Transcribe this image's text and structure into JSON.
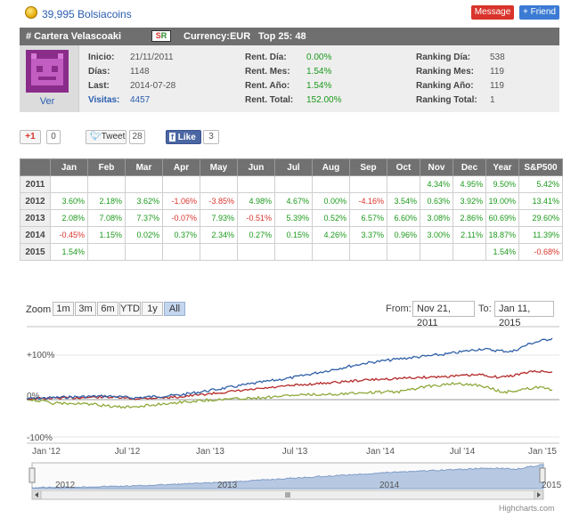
{
  "topbar": {
    "coins_text": "39,995 Bolsiacoins",
    "message_button": "Message",
    "friend_button": "+ Friend"
  },
  "header": {
    "title": "# Cartera Velascoaki",
    "badge_s": "S",
    "badge_r": "R",
    "currency": "Currency:EUR",
    "top": "Top 25: 48"
  },
  "profile": {
    "ver_label": "Ver",
    "col1": [
      {
        "label": "Inicio:",
        "value": "21/11/2011"
      },
      {
        "label": "Días:",
        "value": "1148"
      },
      {
        "label": "Last:",
        "value": "2014-07-28"
      },
      {
        "label": "Visitas:",
        "value": "4457"
      }
    ],
    "col2": [
      {
        "label": "Rent. Día:",
        "value": "0.00%"
      },
      {
        "label": "Rent. Mes:",
        "value": "1.54%"
      },
      {
        "label": "Rent. Año:",
        "value": "1.54%"
      },
      {
        "label": "Rent. Total:",
        "value": "152.00%"
      }
    ],
    "col3": [
      {
        "label": "Ranking Día:",
        "value": "538"
      },
      {
        "label": "Ranking Mes:",
        "value": "119"
      },
      {
        "label": "Ranking Año:",
        "value": "119"
      },
      {
        "label": "Ranking Total:",
        "value": "1"
      }
    ]
  },
  "social": {
    "gplus_label": "+1",
    "gplus_count": "0",
    "tweet_label": "Tweet",
    "tweet_count": "28",
    "like_label": "Like",
    "like_count": "3"
  },
  "table": {
    "headers": [
      "",
      "Jan",
      "Feb",
      "Mar",
      "Apr",
      "May",
      "Jun",
      "Jul",
      "Aug",
      "Sep",
      "Oct",
      "Nov",
      "Dec",
      "Year",
      "S&P500"
    ],
    "rows": [
      {
        "year": "2011",
        "cells": [
          "",
          "",
          "",
          "",
          "",
          "",
          "",
          "",
          "",
          "",
          "4.34%",
          "4.95%",
          "9.50%",
          "5.42%"
        ]
      },
      {
        "year": "2012",
        "cells": [
          "3.60%",
          "2.18%",
          "3.62%",
          "-1.06%",
          "-3.85%",
          "4.98%",
          "4.67%",
          "0.00%",
          "-4.16%",
          "3.54%",
          "0.63%",
          "3.92%",
          "19.00%",
          "13.41%"
        ]
      },
      {
        "year": "2013",
        "cells": [
          "2.08%",
          "7.08%",
          "7.37%",
          "-0.07%",
          "7.93%",
          "-0.51%",
          "5.39%",
          "0.52%",
          "6.57%",
          "6.60%",
          "3.08%",
          "2.86%",
          "60.69%",
          "29.60%"
        ]
      },
      {
        "year": "2014",
        "cells": [
          "-0.45%",
          "1.15%",
          "0.02%",
          "0.37%",
          "2.34%",
          "0.27%",
          "0.15%",
          "4.26%",
          "3.37%",
          "0.96%",
          "3.00%",
          "2.11%",
          "18.87%",
          "11.39%"
        ]
      },
      {
        "year": "2015",
        "cells": [
          "1.54%",
          "",
          "",
          "",
          "",
          "",
          "",
          "",
          "",
          "",
          "",
          "",
          "1.54%",
          "-0.68%"
        ]
      }
    ]
  },
  "chart": {
    "zoom_label": "Zoom",
    "zoom_buttons": [
      "1m",
      "3m",
      "6m",
      "YTD",
      "1y",
      "All"
    ],
    "selected_zoom": "All",
    "from_label": "From:",
    "from_value": "Nov 21, 2011",
    "to_label": "To:",
    "to_value": "Jan 11, 2015",
    "y_ticks": [
      "+100%",
      "0%",
      "-100%"
    ],
    "x_ticks": [
      "Jan '12",
      "Jul '12",
      "Jan '13",
      "Jul '13",
      "Jan '14",
      "Jul '14",
      "Jan '15"
    ],
    "nav_ticks": [
      "2012",
      "2013",
      "2014",
      "2015"
    ],
    "credit": "Highcharts.com",
    "colors": {
      "portfolio": "#2f5fa7",
      "series2": "#b52a2a",
      "series3": "#8ea83a",
      "navigator": "#b7c9e2"
    }
  }
}
